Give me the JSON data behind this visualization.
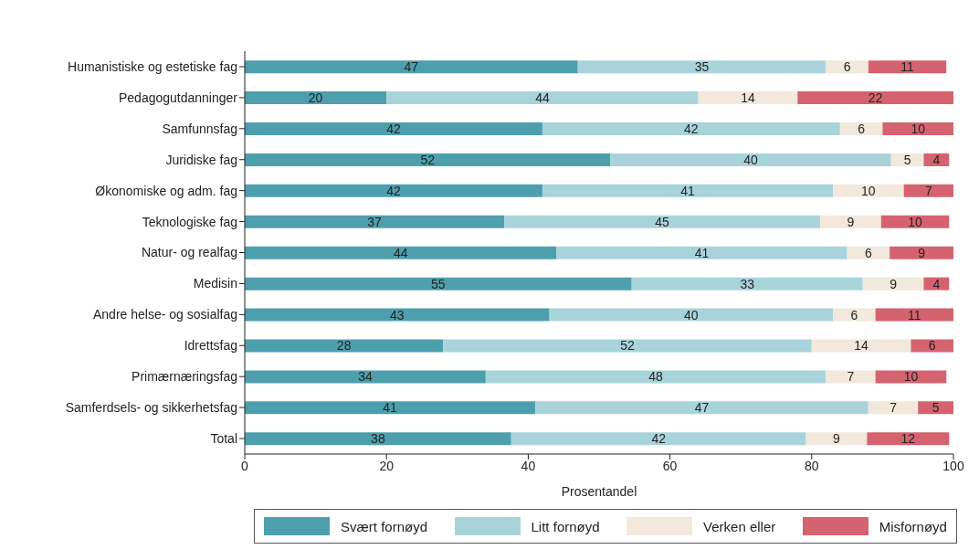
{
  "chart_data": {
    "type": "bar",
    "orientation": "horizontal",
    "stacked": true,
    "xlabel": "Prosentandel",
    "categories": [
      "Humanistiske og estetiske fag",
      "Pedagogutdanninger",
      "Samfunnsfag",
      "Juridiske fag",
      "Økonomiske og adm. fag",
      "Teknologiske fag",
      "Natur- og realfag",
      "Medisin",
      "Andre helse- og sosialfag",
      "Idrettsfag",
      "Primærnæringsfag",
      "Samferdsels- og sikkerhetsfag",
      "Total"
    ],
    "series": [
      {
        "name": "Svært fornøyd",
        "color": "#4e9fad",
        "values": [
          47,
          20,
          42,
          51.6,
          42,
          36.6,
          44,
          54.6,
          43,
          28,
          34,
          41,
          37.6
        ],
        "value_labels": [
          "47",
          "20",
          "42",
          "52",
          "42",
          "37",
          "44",
          "55",
          "43",
          "28",
          "34",
          "41",
          "38"
        ]
      },
      {
        "name": "Litt fornøyd",
        "color": "#a9d3da",
        "values": [
          35,
          44,
          42,
          39.6,
          41,
          44.6,
          41,
          32.6,
          40,
          52,
          48,
          47,
          41.6
        ],
        "value_labels": [
          "35",
          "44",
          "42",
          "40",
          "41",
          "45",
          "41",
          "33",
          "40",
          "52",
          "48",
          "47",
          "42"
        ]
      },
      {
        "name": "Verken eller",
        "color": "#f2e8dc",
        "values": [
          6,
          14,
          6,
          4.6,
          10,
          8.6,
          6,
          8.6,
          6,
          14,
          7,
          7,
          8.6
        ],
        "value_labels": [
          "6",
          "14",
          "6",
          "5",
          "10",
          "9",
          "6",
          "9",
          "6",
          "14",
          "7",
          "7",
          "9"
        ]
      },
      {
        "name": "Misfornøyd",
        "color": "#d4636f",
        "values": [
          11,
          22,
          10,
          3.6,
          7,
          9.6,
          9,
          3.6,
          11,
          6,
          10,
          5,
          11.6
        ],
        "value_labels": [
          "11",
          "22",
          "10",
          "4",
          "7",
          "10",
          "9",
          "4",
          "11",
          "6",
          "10",
          "5",
          "12"
        ]
      }
    ],
    "xlim": [
      0,
      100
    ],
    "xticks": [
      0,
      20,
      40,
      60,
      80,
      100
    ],
    "legend": "bottom"
  }
}
